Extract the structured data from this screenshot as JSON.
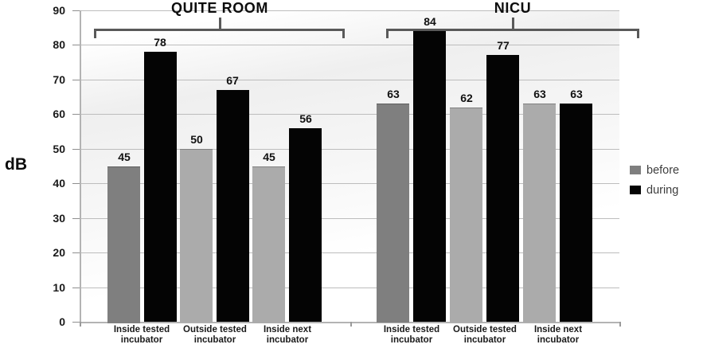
{
  "chart_data": {
    "type": "bar",
    "ylabel": "dB",
    "ylim": [
      0,
      90
    ],
    "ytick_step": 10,
    "yticks": [
      0,
      10,
      20,
      30,
      40,
      50,
      60,
      70,
      80,
      90
    ],
    "grid": true,
    "legend_position": "right",
    "legend": [
      {
        "label": "before",
        "color": "#7f7f7f"
      },
      {
        "label": "during",
        "color": "#040404"
      }
    ],
    "groups": [
      {
        "title": "QUITE ROOM",
        "categories": [
          "Inside tested incubator",
          "Outside tested incubator",
          "Inside next incubator"
        ],
        "pairs": [
          {
            "before": 45,
            "during": 78,
            "before_color": "#7f7f7f"
          },
          {
            "before": 50,
            "during": 67,
            "before_color": "#ababab"
          },
          {
            "before": 45,
            "during": 56,
            "before_color": "#ababab"
          }
        ]
      },
      {
        "title": "NICU",
        "categories": [
          "Inside tested incubator",
          "Outside tested incubator",
          "Inside next incubator"
        ],
        "pairs": [
          {
            "before": 63,
            "during": 84,
            "before_color": "#7f7f7f"
          },
          {
            "before": 62,
            "during": 77,
            "before_color": "#ababab"
          },
          {
            "before": 63,
            "during": 63,
            "before_color": "#ababab"
          }
        ]
      }
    ],
    "during_color": "#040404"
  }
}
